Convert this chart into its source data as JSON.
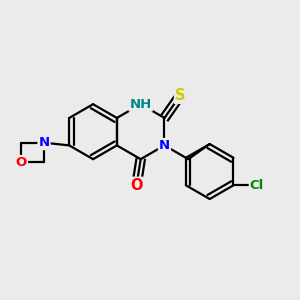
{
  "bg_color": "#ebebeb",
  "bond_color": "#000000",
  "bond_width": 1.6,
  "atom_colors": {
    "N": "#0000ff",
    "O": "#ff0000",
    "S": "#cccc00",
    "Cl": "#008800",
    "H_color": "#008888",
    "C": "#000000"
  },
  "font_size": 9.5,
  "title": ""
}
